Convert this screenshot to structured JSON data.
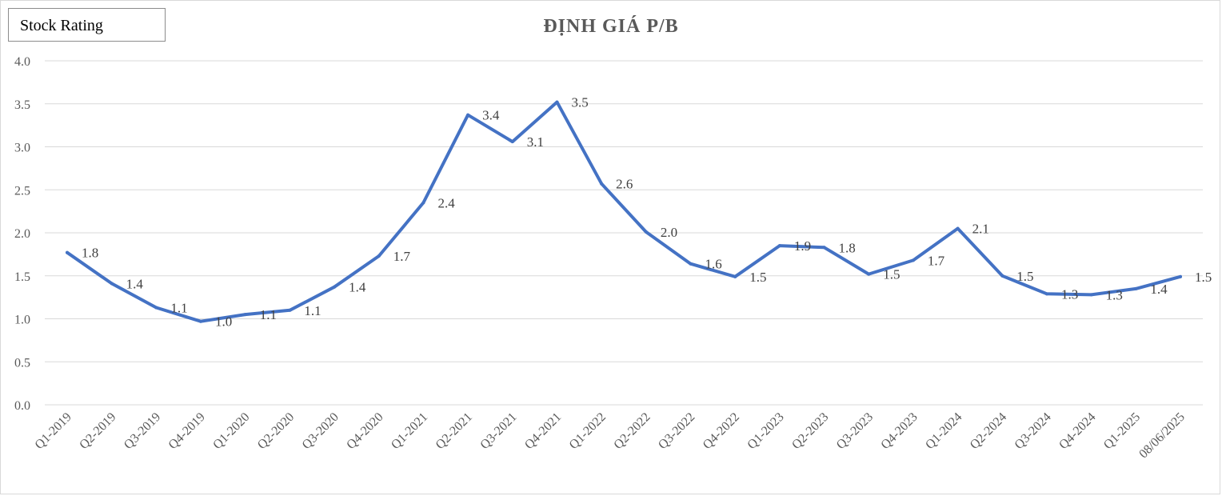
{
  "badge": {
    "label": "Stock Rating"
  },
  "chart_data": {
    "type": "line",
    "title": "ĐỊNH GIÁ P/B",
    "xlabel": "",
    "ylabel": "",
    "ylim": [
      0,
      4
    ],
    "yticks": [
      "0.0",
      "0.5",
      "1.0",
      "1.5",
      "2.0",
      "2.5",
      "3.0",
      "3.5",
      "4.0"
    ],
    "categories": [
      "Q1-2019",
      "Q2-2019",
      "Q3-2019",
      "Q4-2019",
      "Q1-2020",
      "Q2-2020",
      "Q3-2020",
      "Q4-2020",
      "Q1-2021",
      "Q2-2021",
      "Q3-2021",
      "Q4-2021",
      "Q1-2022",
      "Q2-2022",
      "Q3-2022",
      "Q4-2022",
      "Q1-2023",
      "Q2-2023",
      "Q3-2023",
      "Q4-2023",
      "Q1-2024",
      "Q2-2024",
      "Q3-2024",
      "Q4-2024",
      "Q1-2025",
      "08/06/2025"
    ],
    "series": [
      {
        "name": "P/B",
        "color": "#4472c4",
        "values": [
          1.77,
          1.41,
          1.13,
          0.97,
          1.05,
          1.1,
          1.37,
          1.73,
          2.35,
          3.37,
          3.06,
          3.52,
          2.57,
          2.01,
          1.64,
          1.49,
          1.85,
          1.83,
          1.52,
          1.68,
          2.05,
          1.5,
          1.29,
          1.28,
          1.35,
          1.49
        ],
        "labels": [
          "1.8",
          "1.4",
          "1.1",
          "1.0",
          "1.1",
          "1.1",
          "1.4",
          "1.7",
          "2.4",
          "3.4",
          "3.1",
          "3.5",
          "2.6",
          "2.0",
          "1.6",
          "1.5",
          "1.9",
          "1.8",
          "1.5",
          "1.7",
          "2.1",
          "1.5",
          "1.3",
          "1.3",
          "1.4",
          "1.5"
        ]
      }
    ],
    "grid": true,
    "legend": "none"
  }
}
